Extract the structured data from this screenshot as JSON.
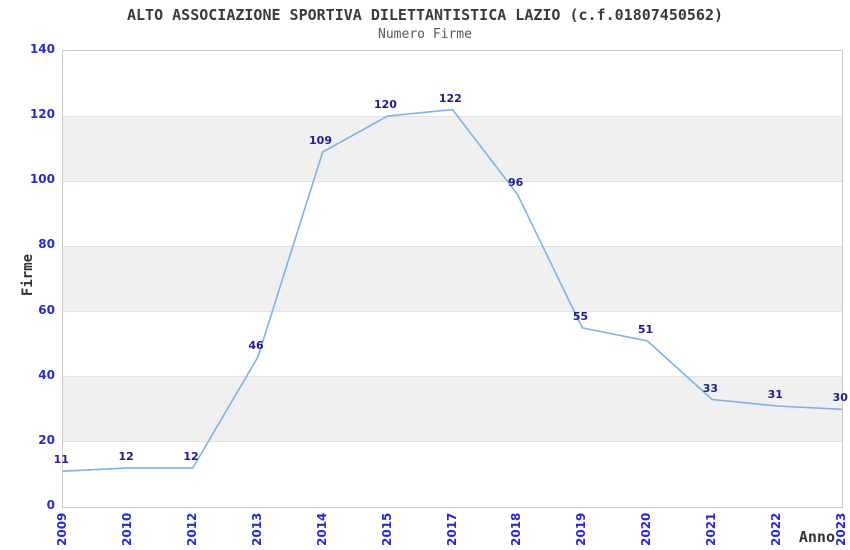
{
  "header": {
    "title": "ALTO ASSOCIAZIONE SPORTIVA DILETTANTISTICA LAZIO (c.f.01807450562)",
    "subtitle": "Numero Firme"
  },
  "colors": {
    "line": "#7fb2e8",
    "band_fill": "#f0f0f0",
    "gridline": "#e2e2e2",
    "plot_border": "#c9c9c9",
    "tick_label": "#2929cf",
    "point_label": "#1e1e8f",
    "title_text": "#3a3a3a",
    "subtitle_text": "#5a5a5a",
    "axis_title_text": "#333333"
  },
  "chart_data": {
    "type": "line",
    "title": "ALTO ASSOCIAZIONE SPORTIVA DILETTANTISTICA LAZIO (c.f.01807450562)",
    "subtitle": "Numero Firme",
    "xlabel": "Anno",
    "ylabel": "Firme",
    "categories": [
      "2009",
      "2010",
      "2012",
      "2013",
      "2014",
      "2015",
      "2017",
      "2018",
      "2019",
      "2020",
      "2021",
      "2022",
      "2023"
    ],
    "values": [
      11,
      12,
      12,
      46,
      109,
      120,
      122,
      96,
      55,
      51,
      33,
      31,
      30
    ],
    "point_labels": [
      "11",
      "12",
      "12",
      "46",
      "109",
      "120",
      "122",
      "96",
      "55",
      "51",
      "33",
      "31",
      "30"
    ],
    "ylim": [
      0,
      140
    ],
    "yticks": [
      0,
      20,
      40,
      60,
      80,
      100,
      120,
      140
    ],
    "ytick_step": 20,
    "shaded_bands": [
      [
        20,
        40
      ],
      [
        60,
        80
      ],
      [
        100,
        120
      ]
    ],
    "grid": "horizontal",
    "legend": "none",
    "markers": "none",
    "x_tick_rotation": -90
  }
}
